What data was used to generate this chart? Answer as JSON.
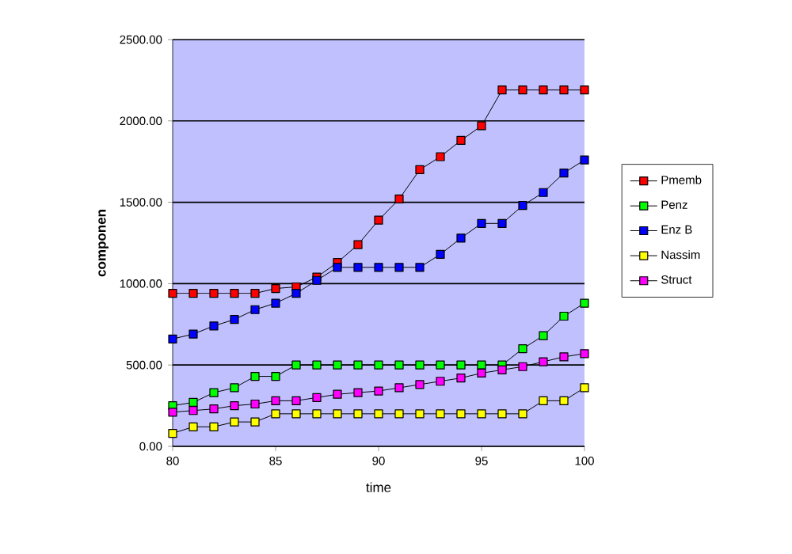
{
  "chart_data": {
    "type": "line",
    "xlabel": "time",
    "ylabel": "componen",
    "marker": "square",
    "grid": "y",
    "legend": "right",
    "x": [
      80,
      81,
      82,
      83,
      84,
      85,
      86,
      87,
      88,
      89,
      90,
      91,
      92,
      93,
      94,
      95,
      96,
      97,
      98,
      99,
      100
    ],
    "xlim": [
      80,
      100
    ],
    "xticks": [
      80,
      85,
      90,
      95,
      100
    ],
    "ylim": [
      0,
      2500
    ],
    "yticks": [
      {
        "value": 0,
        "label": "0.00"
      },
      {
        "value": 500,
        "label": "500.00"
      },
      {
        "value": 1000,
        "label": "1000.00"
      },
      {
        "value": 1500,
        "label": "1500.00"
      },
      {
        "value": 2000,
        "label": "2000.00"
      },
      {
        "value": 2500,
        "label": "2500.00"
      }
    ],
    "series": [
      {
        "name": "Pmemb",
        "color": "#ff0000",
        "values": [
          940,
          940,
          940,
          940,
          940,
          970,
          980,
          1040,
          1130,
          1240,
          1390,
          1520,
          1700,
          1780,
          1880,
          1970,
          2190,
          2190,
          2190,
          2190,
          2190
        ]
      },
      {
        "name": "Penz",
        "color": "#00ff00",
        "values": [
          250,
          270,
          330,
          360,
          430,
          430,
          500,
          500,
          500,
          500,
          500,
          500,
          500,
          500,
          500,
          500,
          500,
          600,
          680,
          800,
          880
        ]
      },
      {
        "name": "Enz B",
        "color": "#0000ff",
        "values": [
          660,
          690,
          740,
          780,
          840,
          880,
          940,
          1020,
          1100,
          1100,
          1100,
          1100,
          1100,
          1180,
          1280,
          1370,
          1370,
          1480,
          1560,
          1680,
          1760
        ]
      },
      {
        "name": "Nassim",
        "color": "#ffff00",
        "values": [
          80,
          120,
          120,
          150,
          150,
          200,
          200,
          200,
          200,
          200,
          200,
          200,
          200,
          200,
          200,
          200,
          200,
          200,
          280,
          280,
          360
        ]
      },
      {
        "name": "Struct",
        "color": "#ff00ff",
        "values": [
          210,
          220,
          230,
          250,
          260,
          280,
          280,
          300,
          320,
          330,
          340,
          360,
          380,
          400,
          420,
          450,
          470,
          490,
          520,
          550,
          570
        ]
      }
    ]
  }
}
